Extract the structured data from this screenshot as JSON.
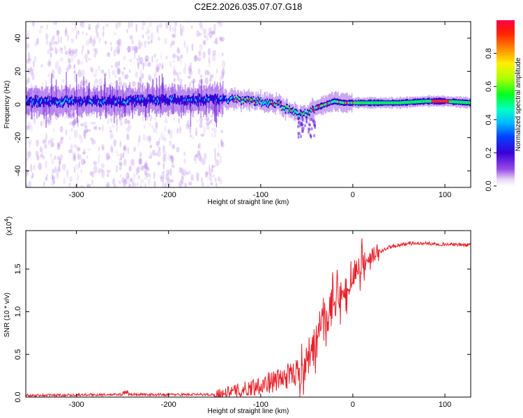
{
  "title": "C2E2.2026.035.07.07.G18",
  "chart_data": [
    {
      "type": "heatmap",
      "xlabel": "Height of straight line (km)",
      "ylabel": "Frequency (Hz)",
      "xlim": [
        -355,
        128
      ],
      "ylim": [
        -50,
        50
      ],
      "xticks": [
        -300,
        -200,
        -100,
        0,
        100
      ],
      "yticks": [
        -40,
        -20,
        0,
        20,
        40
      ],
      "colorbar": {
        "label": "Normalized spectral amplitude",
        "range": [
          0,
          1
        ],
        "ticks": [
          0.0,
          0.2,
          0.4,
          0.6,
          0.8
        ]
      },
      "ridge": {
        "x": [
          -355,
          -300,
          -250,
          -200,
          -150,
          -120,
          -100,
          -80,
          -70,
          -60,
          -50,
          -40,
          -30,
          -20,
          -10,
          0,
          20,
          50,
          80,
          100,
          128
        ],
        "y": [
          2,
          2,
          2,
          3,
          3,
          3,
          2,
          0,
          -3,
          -6,
          -5,
          -2,
          0,
          2,
          1,
          1,
          1,
          1,
          2,
          2,
          1
        ]
      },
      "noise_extent": [
        -355,
        -140
      ]
    },
    {
      "type": "line",
      "xlabel": "Height of straight line (km)",
      "ylabel": "SNR (10 * v/v)",
      "yexponent_label": "(x10",
      "yexponent_power": "4",
      "exponent_close": ")",
      "xlim": [
        -355,
        128
      ],
      "ylim": [
        0,
        1.95
      ],
      "xticks": [
        -300,
        -200,
        -100,
        0,
        100
      ],
      "yticks": [
        0.0,
        0.5,
        1.0,
        1.5
      ],
      "series_color": "#e8202a",
      "envelope": {
        "x": [
          -355,
          -250,
          -150,
          -120,
          -100,
          -80,
          -60,
          -50,
          -40,
          -30,
          -20,
          -10,
          0,
          10,
          20,
          30,
          40,
          60,
          80,
          100,
          128
        ],
        "y": [
          0.02,
          0.03,
          0.03,
          0.08,
          0.15,
          0.2,
          0.3,
          0.45,
          0.6,
          0.9,
          1.1,
          1.2,
          1.35,
          1.5,
          1.62,
          1.7,
          1.76,
          1.8,
          1.8,
          1.79,
          1.78
        ]
      }
    }
  ]
}
